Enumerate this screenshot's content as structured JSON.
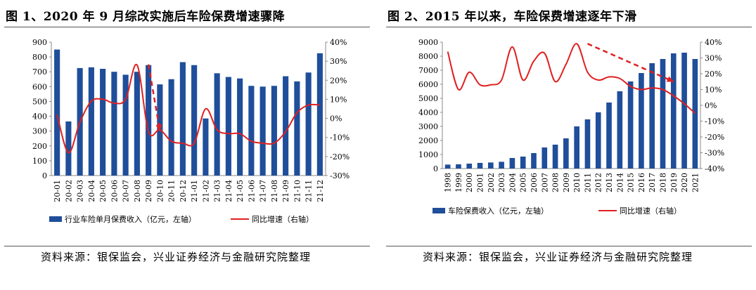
{
  "panels": [
    {
      "title": "图 1、2020 年 9 月综改实施后车险保费增速骤降",
      "source": "资料来源：银保监会，兴业证券经济与金融研究院整理"
    },
    {
      "title": "图 2、2015 年以来，车险保费增速逐年下滑",
      "source": "资料来源：银保监会，兴业证券经济与金融研究院整理"
    }
  ],
  "colors": {
    "bar": "#1F4E9A",
    "line": "#E02020",
    "arrow": "#E02020"
  },
  "chart_data": [
    {
      "type": "bar",
      "categories": [
        "20-01",
        "20-02",
        "20-03",
        "20-04",
        "20-05",
        "20-06",
        "20-07",
        "20-08",
        "20-09",
        "20-10",
        "20-11",
        "20-12",
        "21-01",
        "21-02",
        "21-03",
        "21-04",
        "21-05",
        "21-06",
        "21-07",
        "21-08",
        "21-09",
        "21-10",
        "21-11",
        "21-12"
      ],
      "series": [
        {
          "name": "行业车险单月保费收入（亿元，左轴）",
          "kind": "bar",
          "axis": "left",
          "values": [
            850,
            365,
            725,
            730,
            720,
            700,
            680,
            700,
            745,
            615,
            650,
            765,
            745,
            385,
            690,
            665,
            655,
            605,
            600,
            605,
            670,
            635,
            695,
            825
          ]
        },
        {
          "name": "同比增速（右轴）",
          "kind": "line",
          "axis": "right",
          "values": [
            0.02,
            -0.18,
            -0.02,
            0.09,
            0.1,
            0.08,
            0.1,
            0.28,
            -0.07,
            -0.06,
            -0.12,
            -0.13,
            -0.13,
            0.05,
            -0.06,
            -0.08,
            -0.08,
            -0.12,
            -0.13,
            -0.13,
            -0.07,
            0.03,
            0.07,
            0.07
          ]
        }
      ],
      "y_left": {
        "min": 0,
        "max": 900,
        "ticks": [
          0,
          100,
          200,
          300,
          400,
          500,
          600,
          700,
          800,
          900
        ]
      },
      "y_right": {
        "min": -0.3,
        "max": 0.4,
        "ticks": [
          "-30%",
          "-20%",
          "-10%",
          "0%",
          "10%",
          "20%",
          "30%",
          "40%"
        ]
      },
      "annotation": {
        "type": "dashed-arrow",
        "from": {
          "x": "20-09",
          "y": 750
        },
        "to": {
          "x": "20-10",
          "y": 300
        }
      }
    },
    {
      "type": "bar",
      "categories": [
        "1998",
        "1999",
        "2000",
        "2001",
        "2002",
        "2003",
        "2004",
        "2005",
        "2006",
        "2007",
        "2008",
        "2009",
        "2010",
        "2011",
        "2012",
        "2013",
        "2014",
        "2015",
        "2016",
        "2017",
        "2018",
        "2019",
        "2020",
        "2021"
      ],
      "series": [
        {
          "name": "车险保费收入（亿元，左轴）",
          "kind": "bar",
          "axis": "left",
          "values": [
            280,
            300,
            350,
            400,
            430,
            480,
            750,
            850,
            1100,
            1500,
            1700,
            2150,
            3000,
            3500,
            4000,
            4700,
            5500,
            6200,
            6800,
            7500,
            7800,
            8200,
            8250,
            7800
          ]
        },
        {
          "name": "同比增速（右轴）",
          "kind": "line",
          "axis": "right",
          "values": [
            0.34,
            0.1,
            0.21,
            0.13,
            0.13,
            0.16,
            0.37,
            0.16,
            0.28,
            0.33,
            0.15,
            0.26,
            0.39,
            0.21,
            0.16,
            0.18,
            0.17,
            0.12,
            0.1,
            0.11,
            0.1,
            0.06,
            0.01,
            -0.05
          ]
        }
      ],
      "y_left": {
        "min": 0,
        "max": 9000,
        "ticks": [
          0,
          1000,
          2000,
          3000,
          4000,
          5000,
          6000,
          7000,
          8000,
          9000
        ]
      },
      "y_right": {
        "min": -0.4,
        "max": 0.4,
        "ticks": [
          "-40%",
          "-30%",
          "-20%",
          "-10%",
          "0%",
          "10%",
          "20%",
          "30%",
          "40%"
        ]
      },
      "annotation": {
        "type": "dashed-arrow",
        "from": {
          "x": "2011",
          "y": 0.39
        },
        "to": {
          "x": "2019",
          "y": 0.15
        }
      }
    }
  ]
}
